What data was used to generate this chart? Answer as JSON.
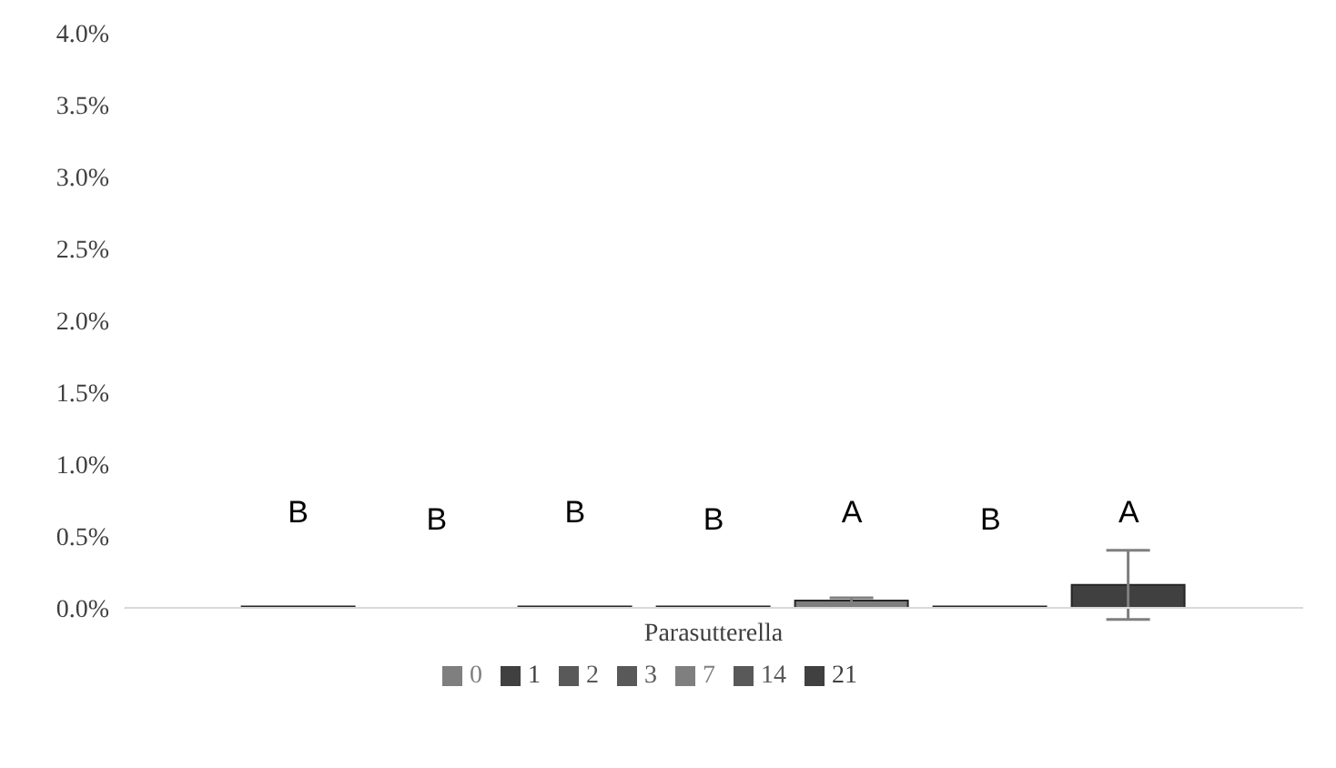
{
  "chart_data": {
    "type": "bar",
    "xlabel": null,
    "categories": [
      "Parasutterella"
    ],
    "series": [
      {
        "name": "0",
        "color": "#7f7f7f",
        "values": [
          0.01
        ]
      },
      {
        "name": "1",
        "color": "#404040",
        "values": [
          0
        ]
      },
      {
        "name": "2",
        "color": "#595959",
        "values": [
          0.01
        ]
      },
      {
        "name": "3",
        "color": "#595959",
        "values": [
          0.01
        ]
      },
      {
        "name": "7",
        "color": "#7f7f7f",
        "values": [
          0.05
        ],
        "errors": [
          0.02
        ]
      },
      {
        "name": "14",
        "color": "#595959",
        "values": [
          0.01
        ]
      },
      {
        "name": "21",
        "color": "#404040",
        "values": [
          0.16
        ],
        "errors": [
          0.24
        ]
      }
    ],
    "ylim": [
      0,
      4
    ],
    "yticks": [
      {
        "value": 0,
        "label": "0.0%"
      },
      {
        "value": 0.5,
        "label": "0.5%"
      },
      {
        "value": 1,
        "label": "1.0%"
      },
      {
        "value": 1.5,
        "label": "1.5%"
      },
      {
        "value": 2,
        "label": "2.0%"
      },
      {
        "value": 2.5,
        "label": "2.5%"
      },
      {
        "value": 3,
        "label": "3.0%"
      },
      {
        "value": 3.5,
        "label": "3.5%"
      },
      {
        "value": 4,
        "label": "4.0%"
      }
    ],
    "grid": false,
    "legend": "bottom",
    "annotations": [
      "B",
      "B",
      "B",
      "B",
      "A",
      "B",
      "A"
    ]
  }
}
